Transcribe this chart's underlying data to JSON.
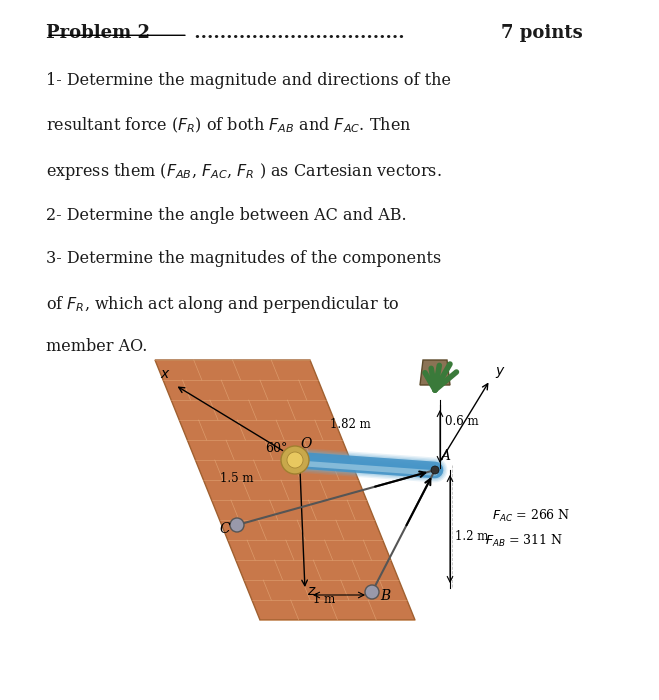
{
  "title_line": "Problem 2 …………………………… 7 points",
  "problem_text": "Problem 2",
  "points_text": "7 points",
  "dots": ".................................",
  "line1": "1- Determine the magnitude and directions of the",
  "line2": "resultant force (F_R) of both F_AB and F_AC. Then",
  "line3": "express them (F_AB, F_AC, F_R ) as Cartesian vectors.",
  "line4": "2- Determine the angle between AC and AB.",
  "line5": "3- Determine the magnitudes of the components",
  "line6": "of F_R, which act along and perpendicular to",
  "line7": "member AO.",
  "fig_label_1m": "1 m",
  "fig_label_12m": "1.2 m",
  "fig_label_15m": "1.5 m",
  "fig_label_60deg": "60°",
  "fig_label_182m": "1.82 m",
  "fig_label_06m": "0.6 m",
  "fig_label_FAB": "F_AB = 311 N",
  "fig_label_FAC": "F_AC = 266 N",
  "fig_label_x": "x",
  "fig_label_y": "y",
  "fig_label_z": "z",
  "fig_label_O": "O",
  "fig_label_A": "A",
  "fig_label_B": "B",
  "fig_label_C": "C",
  "text_color": "#1a1a1a",
  "background_color": "#ffffff",
  "brick_color_light": "#d4956a",
  "brick_color_dark": "#b87040",
  "wall_outline": "#c0784a"
}
